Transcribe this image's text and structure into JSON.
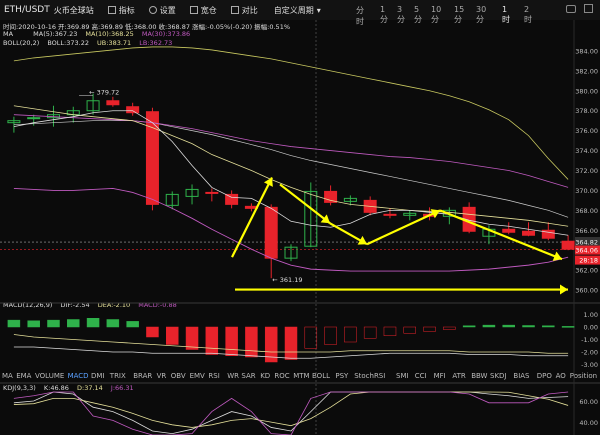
{
  "header": {
    "pair": "ETH/USDT",
    "exchange": "火币全球站",
    "stats": "时间:2020-10-16  开:369.89  高:369.89  低:368.00  收:368.87  涨幅:-0.05%(-0.20)  振幅:0.51%",
    "indicator_button": "指标",
    "settings_button": "设置",
    "draw_button": "宽仓",
    "compare_button": "对比",
    "custom_period": "自定义周期",
    "timeframes": [
      "分时",
      "1分",
      "3分",
      "5分",
      "10分",
      "15分",
      "30分",
      "1时",
      "2时"
    ],
    "active_timeframe": "1时"
  },
  "legends": {
    "ma": "MA",
    "ma5": "MA(5):367.23",
    "ma10": "MA(10):368.25",
    "ma30": "MA(30):373.86",
    "boll": "BOLL(20,2)",
    "boll_mid": "BOLL:373.22",
    "boll_ub": "UB:383.71",
    "boll_lb": "LB:362.73",
    "macd": "MACD(12,26,9)",
    "dif": "DIF:-2.54",
    "dea": "DEA:-2.10",
    "macd_val": "MACD:-0.88",
    "kdj": "KDJ(9,3,3)",
    "k": "K:46.86",
    "d": "D:37.14",
    "j": "J:66.31"
  },
  "annotations": {
    "high_label": "379.72",
    "low_label": "361.19",
    "current_price": "364.82",
    "current_price_2": "364.06",
    "countdown": "28:18"
  },
  "price_axis": [
    "384.00",
    "382.00",
    "380.00",
    "378.00",
    "376.00",
    "374.00",
    "372.00",
    "370.00",
    "368.00",
    "366.00",
    "364.00",
    "362.00",
    "360.00"
  ],
  "macd_axis": [
    "1.00",
    "0.00",
    "-1.00",
    "-2.00",
    "-3.00"
  ],
  "kdj_axis": [
    "60.00",
    "40.00"
  ],
  "indicator_tabs": [
    "MA",
    "EMA",
    "VOLUME",
    "MACD",
    "DMI",
    "TRIX",
    "BRAR",
    "VR",
    "OBV",
    "EMV",
    "RSI",
    "WR",
    "SAR",
    "KD",
    "ROC",
    "MTM",
    "BOLL",
    "PSY",
    "StochRSI",
    "SMI",
    "CCI",
    "MFI",
    "ATR",
    "BBW",
    "SKDJ",
    "BIAS",
    "DPO",
    "AO",
    "Position"
  ],
  "active_indicator": "MACD",
  "colors": {
    "up": "#2fb24b",
    "down": "#e8232b",
    "ma5": "#dddddd",
    "ma10": "#e5e09a",
    "ma30": "#c05ac0",
    "boll": "#c8c860",
    "arrow": "#ffff00"
  },
  "chart_data": {
    "type": "candlestick",
    "ylim": [
      359,
      385.5
    ],
    "candles": [
      {
        "o": 376.8,
        "h": 377.4,
        "l": 375.8,
        "c": 377.0
      },
      {
        "o": 377.2,
        "h": 377.6,
        "l": 376.5,
        "c": 377.3
      },
      {
        "o": 377.3,
        "h": 378.5,
        "l": 376.4,
        "c": 377.6
      },
      {
        "o": 377.6,
        "h": 378.4,
        "l": 376.8,
        "c": 378.0
      },
      {
        "o": 378.0,
        "h": 379.72,
        "l": 377.6,
        "c": 379.0
      },
      {
        "o": 379.0,
        "h": 379.4,
        "l": 378.4,
        "c": 378.6
      },
      {
        "o": 378.4,
        "h": 378.8,
        "l": 377.5,
        "c": 377.8
      },
      {
        "o": 377.9,
        "h": 378.3,
        "l": 368.0,
        "c": 368.6
      },
      {
        "o": 368.5,
        "h": 369.9,
        "l": 368.1,
        "c": 369.6
      },
      {
        "o": 369.4,
        "h": 370.6,
        "l": 368.6,
        "c": 370.1
      },
      {
        "o": 369.8,
        "h": 370.2,
        "l": 368.9,
        "c": 369.7
      },
      {
        "o": 369.6,
        "h": 370.0,
        "l": 368.2,
        "c": 368.6
      },
      {
        "o": 368.4,
        "h": 368.7,
        "l": 367.9,
        "c": 368.2
      },
      {
        "o": 368.3,
        "h": 368.6,
        "l": 361.19,
        "c": 363.2
      },
      {
        "o": 363.2,
        "h": 364.6,
        "l": 362.9,
        "c": 364.3
      },
      {
        "o": 364.4,
        "h": 370.8,
        "l": 364.3,
        "c": 369.9
      },
      {
        "o": 369.9,
        "h": 370.5,
        "l": 368.5,
        "c": 368.8
      },
      {
        "o": 368.9,
        "h": 369.5,
        "l": 368.5,
        "c": 369.2
      },
      {
        "o": 369.0,
        "h": 369.4,
        "l": 367.5,
        "c": 367.8
      },
      {
        "o": 367.6,
        "h": 368.2,
        "l": 367.2,
        "c": 367.5
      },
      {
        "o": 367.5,
        "h": 368.0,
        "l": 367.0,
        "c": 367.7
      },
      {
        "o": 367.6,
        "h": 368.3,
        "l": 367.0,
        "c": 367.4
      },
      {
        "o": 367.4,
        "h": 368.3,
        "l": 366.6,
        "c": 368.0
      },
      {
        "o": 368.3,
        "h": 368.8,
        "l": 365.7,
        "c": 365.9
      },
      {
        "o": 365.4,
        "h": 366.5,
        "l": 364.6,
        "c": 366.1
      },
      {
        "o": 366.1,
        "h": 366.8,
        "l": 365.6,
        "c": 365.8
      },
      {
        "o": 365.9,
        "h": 366.8,
        "l": 365.4,
        "c": 365.5
      },
      {
        "o": 366.0,
        "h": 366.8,
        "l": 365.0,
        "c": 365.2
      },
      {
        "o": 364.9,
        "h": 365.5,
        "l": 364.0,
        "c": 364.1
      }
    ],
    "ma5": [
      376.4,
      376.8,
      377.1,
      377.4,
      377.8,
      378.0,
      378.0,
      376.8,
      374.9,
      372.5,
      370.3,
      369.3,
      369.2,
      368.2,
      366.9,
      366.5,
      366.3,
      366.7,
      367.6,
      368.0,
      368.0,
      367.8,
      367.6,
      367.0,
      366.6,
      366.4,
      366.1,
      365.8,
      365.5
    ],
    "ma10": [
      378.5,
      378.2,
      377.9,
      377.6,
      377.4,
      377.2,
      377.0,
      376.3,
      375.5,
      374.7,
      373.6,
      372.8,
      372.0,
      371.1,
      370.3,
      369.6,
      369.0,
      368.6,
      368.4,
      368.2,
      368.0,
      367.9,
      367.8,
      367.6,
      367.4,
      367.2,
      367.0,
      366.7,
      366.4
    ],
    "ma30": [
      377.6,
      377.5,
      377.4,
      377.3,
      377.2,
      377.1,
      377.0,
      376.8,
      376.5,
      376.2,
      375.8,
      375.4,
      375.0,
      374.7,
      374.4,
      374.2,
      374.0,
      373.8,
      373.6,
      373.4,
      373.3,
      373.1,
      372.9,
      372.6,
      372.3,
      372.0,
      371.5,
      370.9,
      370.3
    ],
    "boll_ub": [
      383.0,
      383.3,
      383.5,
      383.7,
      383.9,
      384.1,
      384.3,
      384.4,
      384.4,
      384.3,
      384.1,
      383.8,
      383.5,
      383.2,
      382.8,
      382.4,
      382.0,
      381.6,
      381.2,
      380.8,
      380.4,
      380.0,
      379.5,
      378.9,
      378.1,
      377.1,
      375.5,
      373.2,
      371.1
    ],
    "boll_mid": [
      376.6,
      376.7,
      376.8,
      376.9,
      377.0,
      377.0,
      377.0,
      376.8,
      376.4,
      376.0,
      375.6,
      375.1,
      374.6,
      374.1,
      373.5,
      373.0,
      372.6,
      372.2,
      371.8,
      371.4,
      371.0,
      370.6,
      370.2,
      369.8,
      369.4,
      369.0,
      368.5,
      368.0,
      367.3
    ],
    "boll_lb": [
      370.2,
      370.1,
      370.0,
      370.0,
      370.1,
      370.2,
      369.8,
      369.1,
      368.2,
      367.2,
      366.1,
      365.1,
      364.1,
      363.2,
      362.5,
      362.1,
      362.0,
      361.9,
      361.9,
      361.9,
      361.9,
      361.9,
      361.9,
      362.0,
      362.1,
      362.3,
      362.5,
      362.8,
      363.3
    ],
    "macd_hist": [
      0.55,
      0.5,
      0.55,
      0.6,
      0.7,
      0.6,
      0.45,
      -0.8,
      -1.4,
      -1.8,
      -2.2,
      -2.3,
      -2.4,
      -2.8,
      -2.6,
      -1.7,
      -1.4,
      -1.2,
      -0.9,
      -0.7,
      -0.5,
      -0.35,
      -0.2,
      0.1,
      0.15,
      0.15,
      0.12,
      0.1,
      0.05
    ],
    "dif": [
      -1.6,
      -1.6,
      -1.7,
      -1.8,
      -1.9,
      -2.0,
      -2.0,
      -2.1,
      -2.1,
      -2.1,
      -2.1,
      -2.2,
      -2.3,
      -2.4,
      -2.5,
      -2.5,
      -2.4,
      -2.3,
      -2.2,
      -2.1,
      -2.1,
      -2.1,
      -2.1,
      -2.2,
      -2.2,
      -2.2,
      -2.3,
      -2.3,
      -2.3
    ],
    "dea": [
      -0.6,
      -0.8,
      -0.9,
      -1.0,
      -1.1,
      -1.2,
      -1.3,
      -1.4,
      -1.5,
      -1.6,
      -1.7,
      -1.8,
      -1.9,
      -2.0,
      -2.0,
      -2.0,
      -2.0,
      -1.9,
      -1.9,
      -1.9,
      -1.9,
      -1.9,
      -1.9,
      -2.0,
      -2.0,
      -2.0,
      -2.0,
      -2.1,
      -2.1
    ],
    "kdj_k": [
      40,
      42,
      55,
      50,
      35,
      30,
      20,
      8,
      5,
      10,
      20,
      30,
      25,
      12,
      8,
      30,
      55,
      68,
      68,
      72,
      72,
      70,
      70,
      58,
      50,
      48,
      45,
      46,
      47
    ],
    "kdj_d": [
      38,
      39,
      45,
      45,
      40,
      35,
      28,
      20,
      15,
      12,
      15,
      20,
      22,
      18,
      14,
      22,
      35,
      50,
      58,
      64,
      68,
      68,
      68,
      63,
      57,
      52,
      48,
      44,
      37
    ],
    "kdj_j": [
      45,
      48,
      70,
      60,
      25,
      20,
      10,
      -5,
      -8,
      5,
      30,
      45,
      30,
      5,
      0,
      45,
      75,
      90,
      85,
      85,
      80,
      75,
      75,
      50,
      40,
      40,
      40,
      50,
      66
    ]
  }
}
